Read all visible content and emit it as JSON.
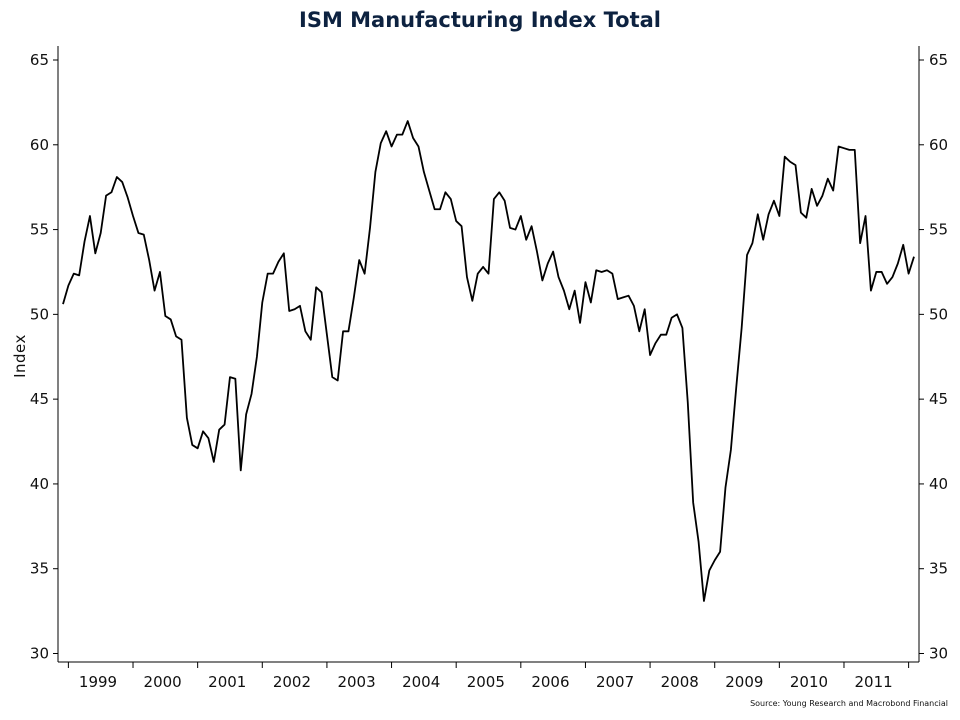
{
  "chart_data": {
    "type": "line",
    "title": "ISM Manufacturing Index Total",
    "ylabel": "Index",
    "xlabel": "",
    "ylim": [
      30,
      65
    ],
    "yticks": [
      30,
      35,
      40,
      45,
      50,
      55,
      60,
      65
    ],
    "x_tick_labels": [
      "1999",
      "2000",
      "2001",
      "2002",
      "2003",
      "2004",
      "2005",
      "2006",
      "2007",
      "2008",
      "2009",
      "2010",
      "2011"
    ],
    "dual_y_axis": true,
    "grid": false,
    "legend": "none",
    "source": "Source: Young Research and Macrobond Financial",
    "line_color": "#000000",
    "title_color": "#0d2240",
    "series": [
      {
        "x_start": "1998-12",
        "frequency": "monthly",
        "values": [
          50.6,
          51.7,
          52.4,
          52.3,
          54.3,
          55.8,
          53.6,
          54.8,
          57.0,
          57.2,
          58.1,
          57.8,
          56.9,
          55.8,
          54.8,
          54.7,
          53.2,
          51.4,
          52.5,
          49.9,
          49.7,
          48.7,
          48.5,
          43.9,
          42.3,
          42.1,
          43.1,
          42.7,
          41.3,
          43.2,
          43.5,
          46.3,
          46.2,
          40.8,
          44.1,
          45.3,
          47.5,
          50.7,
          52.4,
          52.4,
          53.1,
          53.6,
          50.2,
          50.3,
          50.5,
          49.0,
          48.5,
          51.6,
          51.3,
          48.8,
          46.3,
          46.1,
          49.0,
          49.0,
          51.0,
          53.2,
          52.4,
          55.1,
          58.4,
          60.1,
          60.8,
          59.9,
          60.6,
          60.6,
          61.4,
          60.4,
          59.9,
          58.4,
          57.3,
          56.2,
          56.2,
          57.2,
          56.8,
          55.5,
          55.2,
          52.2,
          50.8,
          52.4,
          52.8,
          52.4,
          56.8,
          57.2,
          56.7,
          55.1,
          55.0,
          55.8,
          54.4,
          55.2,
          53.7,
          52.0,
          53.0,
          53.7,
          52.2,
          51.4,
          50.3,
          51.4,
          49.5,
          51.9,
          50.7,
          52.6,
          52.5,
          52.6,
          52.4,
          50.9,
          51.0,
          51.1,
          50.5,
          49.0,
          50.3,
          47.6,
          48.3,
          48.8,
          48.8,
          49.8,
          50.0,
          49.2,
          44.8,
          38.9,
          36.6,
          33.1,
          34.9,
          35.5,
          36.0,
          39.8,
          42.0,
          45.7,
          49.2,
          53.5,
          54.2,
          55.9,
          54.4,
          55.9,
          56.7,
          55.8,
          59.3,
          59.0,
          58.8,
          56.0,
          55.7,
          57.4,
          56.4,
          57.0,
          58.0,
          57.3,
          59.9,
          59.8,
          59.7,
          59.7,
          54.2,
          55.8,
          51.4,
          52.5,
          52.5,
          51.8,
          52.2,
          53.0,
          54.1,
          52.4,
          53.4
        ]
      }
    ]
  }
}
